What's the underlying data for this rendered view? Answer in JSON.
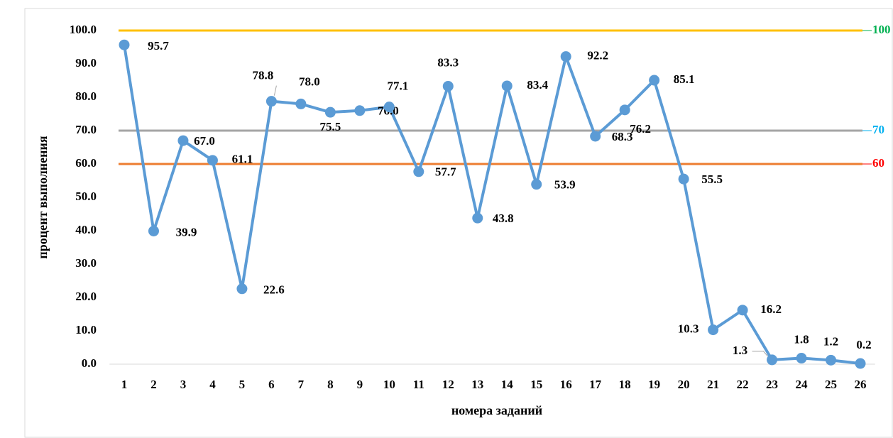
{
  "chart_data": {
    "type": "line",
    "x_label": "номера заданий",
    "y_label": "процент выполнения",
    "categories": [
      "1",
      "2",
      "3",
      "4",
      "5",
      "6",
      "7",
      "8",
      "9",
      "10",
      "11",
      "12",
      "13",
      "14",
      "15",
      "16",
      "17",
      "18",
      "19",
      "20",
      "21",
      "22",
      "23",
      "24",
      "25",
      "26"
    ],
    "series": [
      {
        "color": "#5b9bd5",
        "values": [
          95.7,
          39.9,
          67.0,
          61.1,
          22.6,
          78.8,
          78.0,
          75.5,
          76.0,
          77.1,
          57.7,
          83.3,
          43.8,
          83.4,
          53.9,
          92.2,
          68.3,
          76.2,
          85.1,
          55.5,
          10.3,
          16.2,
          1.3,
          1.8,
          1.2,
          0.2
        ],
        "value_labels": [
          "95.7",
          "39.9",
          "67.0",
          "61.1",
          "22.6",
          "78.8",
          "78.0",
          "75.5",
          "76.0",
          "77.1",
          "57.7",
          "83.3",
          "43.8",
          "83.4",
          "53.9",
          "92.2",
          "68.3",
          "76.2",
          "85.1",
          "55.5",
          "10.3",
          "16.2",
          "1.3",
          "1.8",
          "1.2",
          "0.2"
        ]
      }
    ],
    "reference_lines": [
      {
        "value": 100,
        "color": "#ffc000",
        "label_color": "#00b050"
      },
      {
        "value": 70,
        "color": "#a5a5a5",
        "label_color": "#00b0f0"
      },
      {
        "value": 60,
        "color": "#ed7d31",
        "label_color": "#ff0000"
      }
    ],
    "ylim": [
      0,
      100
    ],
    "yticks": [
      {
        "value": 0,
        "label": "0.0"
      },
      {
        "value": 10,
        "label": "10.0"
      },
      {
        "value": 20,
        "label": "20.0"
      },
      {
        "value": 30,
        "label": "30.0"
      },
      {
        "value": 40,
        "label": "40.0"
      },
      {
        "value": 50,
        "label": "50.0"
      },
      {
        "value": 60,
        "label": "60.0"
      },
      {
        "value": 70,
        "label": "70.0"
      },
      {
        "value": 80,
        "label": "80.0"
      },
      {
        "value": 90,
        "label": "90.0"
      },
      {
        "value": 100,
        "label": "100.0"
      }
    ],
    "grid": false
  }
}
